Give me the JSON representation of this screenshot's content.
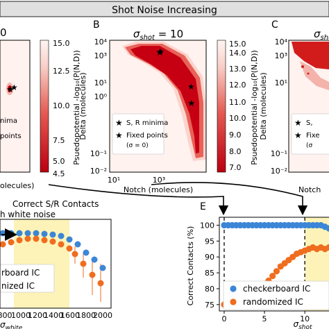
{
  "banner": {
    "title": "Shot Noise Increasing"
  },
  "panel_a": {
    "sigma_fragment": "0",
    "colorbar_ticks": [
      "15.0",
      "12.5",
      "10.0",
      "7.5",
      "5.0",
      "4.5"
    ],
    "colorbar_values": [
      15.0,
      12.5,
      10.0,
      7.5,
      5.0,
      4.5
    ],
    "colorbar_label": "Psuedopotential -log₁₀(P(N,D))",
    "legend_fragments": [
      "nima",
      "points"
    ],
    "xlabel_fragment": "olecules)"
  },
  "panel_b": {
    "letter": "B",
    "title": "σshot = 10",
    "xlabel": "Notch (molecules)",
    "ylabel": "Delta (molecules)",
    "xticks": [
      "10¹",
      "10³"
    ],
    "yticks": [
      "10⁴",
      "10³",
      "10¹",
      "10⁰",
      "10⁻¹",
      "10⁻²"
    ],
    "legend": [
      {
        "label": "S, R minima",
        "marker": "green-star"
      },
      {
        "label": "Fixed points",
        "marker": "black-star"
      },
      {
        "label": "(σ = 0)",
        "marker": "none"
      }
    ],
    "colorbar_ticks": [
      "15.0",
      "14.0",
      "13.0",
      "12.0",
      "11.0",
      "10.0",
      "9.0",
      "8.0",
      "7.0"
    ],
    "colorbar_label": "Psuedopotential -log₁₀(P(N,D))",
    "green_star_points": [
      [
        620,
        1500
      ],
      [
        1900,
        5
      ]
    ],
    "black_star_points": [
      [
        560,
        1200
      ],
      [
        1900,
        25
      ]
    ]
  },
  "panel_c": {
    "letter": "C",
    "title_fragment": "σshot",
    "ylabel": "Delta (molecules)",
    "yticks": [
      "10⁴",
      "10³",
      "10¹",
      "10⁻¹",
      "10⁻²"
    ],
    "legend_fragments": [
      "S,",
      "Fixe",
      "(σ"
    ],
    "xlabel_fragment": "Notch"
  },
  "panel_d": {
    "title_line1": "Correct S/R Contacts",
    "title_line2": "h white noise",
    "xticks": [
      "800",
      "1000",
      "1200",
      "1400",
      "1600",
      "1800",
      "2000"
    ],
    "xlabel": "σwhite",
    "legend": [
      {
        "label": "rboard IC"
      },
      {
        "label": "nized IC"
      }
    ],
    "colors": {
      "checkerboard": "#3b86d6",
      "randomized": "#ef6d1e",
      "highlight": "#fdf3b8"
    }
  },
  "panel_e": {
    "letter": "E",
    "ylabel": "Correct Contacts (%)",
    "xlabel": "σshot",
    "chart_data": {
      "type": "scatter",
      "x": [
        0,
        0.5,
        1,
        1.5,
        2,
        2.5,
        3,
        3.5,
        4,
        4.5,
        5,
        5.5,
        6,
        6.5,
        7,
        7.5,
        8,
        8.5,
        9,
        9.5,
        10,
        10.5,
        11,
        11.5,
        12,
        12.5,
        13
      ],
      "series": [
        {
          "name": "checkerboard IC",
          "values": [
            100,
            100,
            100,
            100,
            100,
            100,
            100,
            100,
            100,
            100,
            100,
            100,
            100,
            100,
            100,
            100,
            100,
            100,
            100,
            100,
            100,
            100,
            100,
            100,
            100,
            99.5,
            99
          ]
        },
        {
          "name": "randomized IC",
          "values": [
            75,
            75.5,
            76,
            76,
            76.5,
            77,
            77.5,
            78,
            79,
            80,
            81.5,
            82.5,
            84,
            85.5,
            87,
            88,
            89,
            90,
            91,
            91.5,
            92,
            92.5,
            93,
            92.5,
            93,
            92.5,
            93
          ]
        }
      ],
      "yticks": [
        75,
        80,
        85,
        90,
        95,
        100
      ],
      "xticks": [
        0,
        5,
        10
      ],
      "ylim": [
        73,
        102.5
      ],
      "xlim": [
        -0.6,
        13
      ],
      "highlight_from": 10,
      "markers_at": [
        0,
        10
      ],
      "colors": {
        "checkerboard": "#3b86d6",
        "randomized": "#ef6d1e",
        "highlight": "#fdf3b8"
      }
    }
  }
}
